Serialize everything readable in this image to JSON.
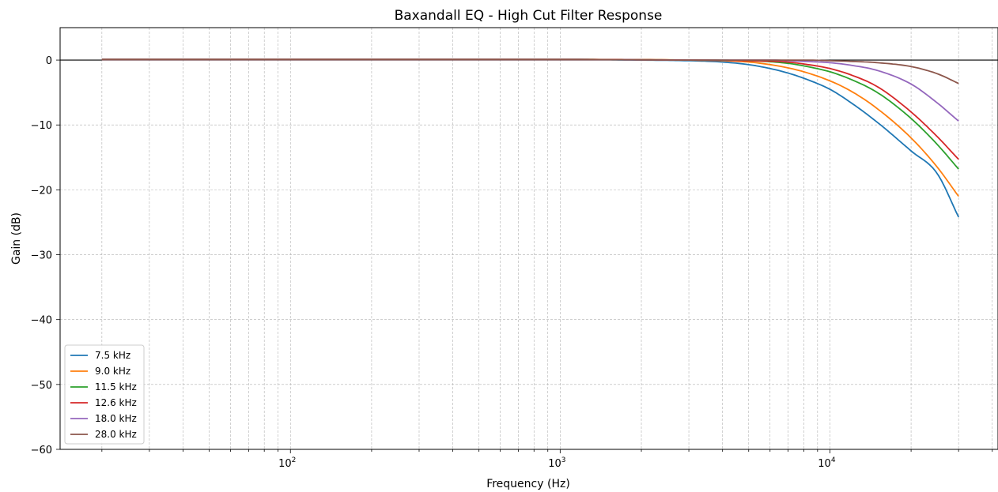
{
  "chart_data": {
    "type": "line",
    "title": "Baxandall EQ - High Cut Filter Response",
    "xlabel": "Frequency (Hz)",
    "ylabel": "Gain (dB)",
    "xscale": "log",
    "xlim": [
      14,
      42000
    ],
    "ylim": [
      -60,
      5
    ],
    "x_ticks": [
      {
        "value": 100,
        "base": "10",
        "exp": "2"
      },
      {
        "value": 1000,
        "base": "10",
        "exp": "3"
      },
      {
        "value": 10000,
        "base": "10",
        "exp": "4"
      }
    ],
    "y_ticks": [
      {
        "value": 0,
        "label": "0"
      },
      {
        "value": -10,
        "label": "−10"
      },
      {
        "value": -20,
        "label": "−20"
      },
      {
        "value": -30,
        "label": "−30"
      },
      {
        "value": -40,
        "label": "−40"
      },
      {
        "value": -50,
        "label": "−50"
      },
      {
        "value": -60,
        "label": "−60"
      }
    ],
    "grid": true,
    "reference_line_y": 0,
    "legend_position": "lower-left",
    "x_range_data": [
      20,
      30000
    ],
    "series": [
      {
        "name": "7.5 kHz",
        "color": "#1f77b4",
        "x": [
          20,
          1000,
          2000,
          3000,
          4000,
          5000,
          6000,
          7000,
          8000,
          10000,
          12000,
          15000,
          20000,
          25000,
          30000
        ],
        "y": [
          0.1,
          0.1,
          0.0,
          -0.1,
          -0.3,
          -0.7,
          -1.3,
          -2.0,
          -2.8,
          -4.5,
          -6.6,
          -9.6,
          -14.0,
          -17.5,
          -24.2
        ]
      },
      {
        "name": "9.0 kHz",
        "color": "#ff7f0e",
        "x": [
          20,
          1000,
          3000,
          5000,
          6000,
          7000,
          8000,
          10000,
          12000,
          15000,
          20000,
          25000,
          30000
        ],
        "y": [
          0.1,
          0.1,
          0.0,
          -0.3,
          -0.7,
          -1.2,
          -1.8,
          -3.2,
          -4.8,
          -7.5,
          -12.0,
          -16.5,
          -21.0
        ]
      },
      {
        "name": "11.5 kHz",
        "color": "#2ca02c",
        "x": [
          20,
          1000,
          3000,
          5000,
          7000,
          8000,
          10000,
          12000,
          15000,
          20000,
          25000,
          30000
        ],
        "y": [
          0.1,
          0.1,
          0.0,
          -0.1,
          -0.5,
          -0.9,
          -1.8,
          -3.0,
          -5.0,
          -9.0,
          -13.0,
          -16.8
        ]
      },
      {
        "name": "12.6 kHz",
        "color": "#d62728",
        "x": [
          20,
          1000,
          3000,
          5000,
          7000,
          8000,
          10000,
          12000,
          15000,
          20000,
          25000,
          30000
        ],
        "y": [
          0.1,
          0.1,
          0.0,
          -0.1,
          -0.3,
          -0.6,
          -1.3,
          -2.3,
          -4.1,
          -8.0,
          -11.8,
          -15.3
        ]
      },
      {
        "name": "18.0 kHz",
        "color": "#9467bd",
        "x": [
          20,
          1000,
          3000,
          6000,
          8000,
          10000,
          12000,
          15000,
          20000,
          25000,
          30000
        ],
        "y": [
          0.1,
          0.1,
          0.0,
          0.0,
          -0.2,
          -0.4,
          -0.8,
          -1.6,
          -3.7,
          -6.6,
          -9.4
        ]
      },
      {
        "name": "28.0 kHz",
        "color": "#8c564b",
        "x": [
          20,
          1000,
          3000,
          8000,
          10000,
          12000,
          15000,
          20000,
          25000,
          30000
        ],
        "y": [
          0.1,
          0.1,
          0.0,
          0.0,
          -0.1,
          -0.2,
          -0.4,
          -1.0,
          -2.1,
          -3.6
        ]
      }
    ]
  }
}
